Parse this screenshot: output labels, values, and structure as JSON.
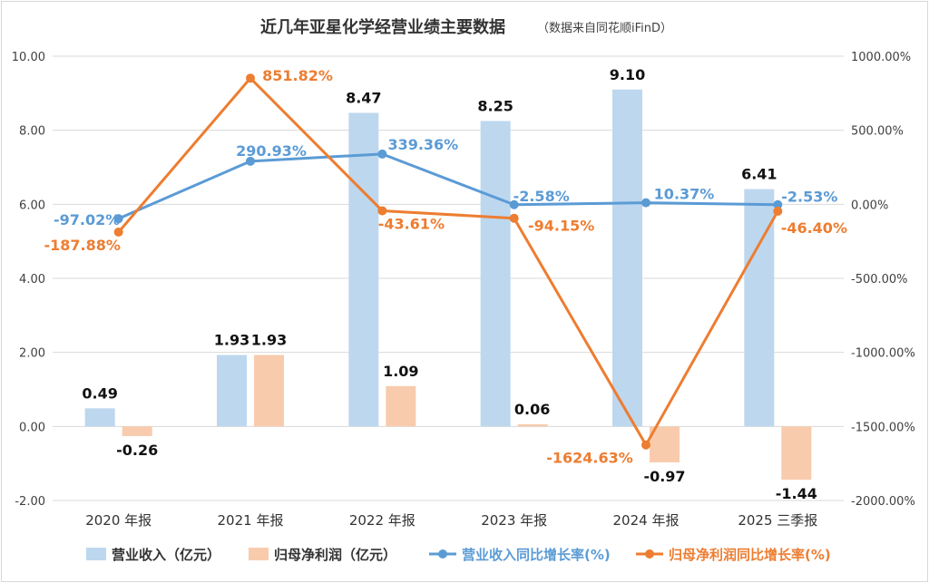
{
  "chart_data": {
    "type": "bar+line",
    "title": "近几年亚星化学经营业绩主要数据",
    "subtitle": "（数据来自同花顺iFinD）",
    "categories": [
      "2020 年报",
      "2021 年报",
      "2022 年报",
      "2023 年报",
      "2024 年报",
      "2025 三季报"
    ],
    "y_left": {
      "lim": [
        -2,
        10
      ],
      "ticks": [
        -2,
        0,
        2,
        4,
        6,
        8,
        10
      ],
      "tick_labels": [
        "-2.00",
        "0.00",
        "2.00",
        "4.00",
        "6.00",
        "8.00",
        "10.00"
      ]
    },
    "y_right": {
      "lim": [
        -2000,
        1000
      ],
      "ticks": [
        -2000,
        -1500,
        -1000,
        -500,
        0,
        500,
        1000
      ],
      "tick_labels": [
        "-2000.00%",
        "-1500.00%",
        "-1000.00%",
        "-500.00%",
        "0.00%",
        "500.00%",
        "1000.00%"
      ]
    },
    "series": [
      {
        "name": "营业收入（亿元）",
        "type": "bar",
        "axis": "left",
        "color": "#bdd7ee",
        "values": [
          0.49,
          1.93,
          8.47,
          8.25,
          9.1,
          6.41
        ],
        "labels": [
          "0.49",
          "1.93",
          "8.47",
          "8.25",
          "9.10",
          "6.41"
        ]
      },
      {
        "name": "归母净利润（亿元）",
        "type": "bar",
        "axis": "left",
        "color": "#f8cbad",
        "values": [
          -0.26,
          1.93,
          1.09,
          0.06,
          -0.97,
          -1.44
        ],
        "labels": [
          "-0.26",
          "1.93",
          "1.09",
          "0.06",
          "-0.97",
          "-1.44"
        ]
      },
      {
        "name": "营业收入同比增长率(%)",
        "type": "line",
        "axis": "right",
        "color": "#5b9bd5",
        "values": [
          -97.02,
          290.93,
          339.36,
          -2.58,
          10.37,
          -2.53
        ],
        "labels": [
          "-97.02%",
          "290.93%",
          "339.36%",
          "-2.58%",
          "10.37%",
          "-2.53%"
        ]
      },
      {
        "name": "归母净利润同比增长率(%)",
        "type": "line",
        "axis": "right",
        "color": "#ed7d31",
        "values": [
          -187.88,
          851.82,
          -43.61,
          -94.15,
          -1624.63,
          -46.4
        ],
        "labels": [
          "-187.88%",
          "851.82%",
          "-43.61%",
          "-94.15%",
          "-1624.63%",
          "-46.40%"
        ]
      }
    ],
    "legend_position": "bottom"
  }
}
